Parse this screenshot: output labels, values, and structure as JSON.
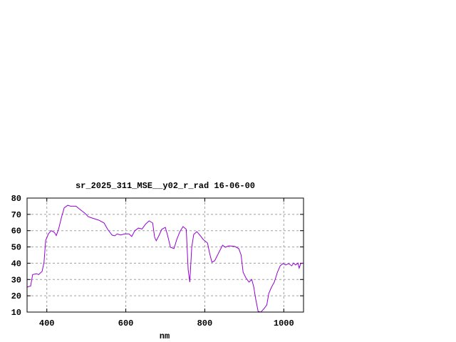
{
  "chart_data": {
    "type": "line",
    "title": "sr_2025_311_MSE__y02_r_rad 16-06-00",
    "xlabel": "nm",
    "ylabel": "",
    "xlim": [
      350,
      1050
    ],
    "ylim": [
      10,
      80
    ],
    "xticks": [
      400,
      600,
      800,
      1000
    ],
    "yticks": [
      10,
      20,
      30,
      40,
      50,
      60,
      70,
      80
    ],
    "grid": true,
    "legend": "none",
    "line_color": "#9400d3",
    "series": [
      {
        "x": [
          350,
          359,
          364,
          374,
          379,
          388,
          393,
          397,
          404,
          411,
          419,
          424,
          430,
          437,
          444,
          453,
          460,
          467,
          474,
          482,
          491,
          496,
          505,
          514,
          532,
          545,
          554,
          565,
          572,
          578,
          587,
          597,
          608,
          615,
          623,
          632,
          641,
          650,
          659,
          668,
          673,
          677,
          684,
          691,
          700,
          706,
          713,
          722,
          729,
          737,
          745,
          753,
          758,
          762,
          767,
          772,
          780,
          789,
          796,
          807,
          812,
          818,
          825,
          836,
          845,
          852,
          861,
          876,
          886,
          892,
          897,
          904,
          912,
          919,
          924,
          929,
          935,
          942,
          949,
          957,
          962,
          969,
          976,
          984,
          991,
          998,
          1005,
          1012,
          1020,
          1025,
          1030,
          1036,
          1039,
          1043,
          1050
        ],
        "y": [
          25.3,
          26,
          33,
          33.6,
          33,
          35,
          40.6,
          54,
          58,
          60,
          59,
          57,
          61,
          68,
          74,
          75.6,
          75,
          75,
          75,
          73.4,
          71.7,
          70.8,
          68.6,
          67.8,
          66.4,
          64.7,
          60.8,
          57.3,
          56.8,
          58,
          57.3,
          58,
          58,
          56.4,
          60,
          61.6,
          61,
          64,
          66,
          64.7,
          56,
          53.8,
          57,
          60.8,
          62,
          57,
          49.8,
          49,
          54.6,
          59.4,
          62.5,
          60.8,
          36,
          28.4,
          49.8,
          57.7,
          59.4,
          56.8,
          54.6,
          52.4,
          46.3,
          40.6,
          41.5,
          46.8,
          51.1,
          49.8,
          50.7,
          50.3,
          49,
          45,
          34.5,
          31,
          28.4,
          30,
          25.3,
          17.9,
          10.4,
          10,
          11.8,
          14.4,
          21.4,
          25.3,
          28.4,
          34.5,
          38.4,
          39.8,
          38.9,
          39.8,
          38.4,
          40.1,
          38.9,
          40.1,
          37,
          39.8,
          40
        ]
      }
    ]
  }
}
